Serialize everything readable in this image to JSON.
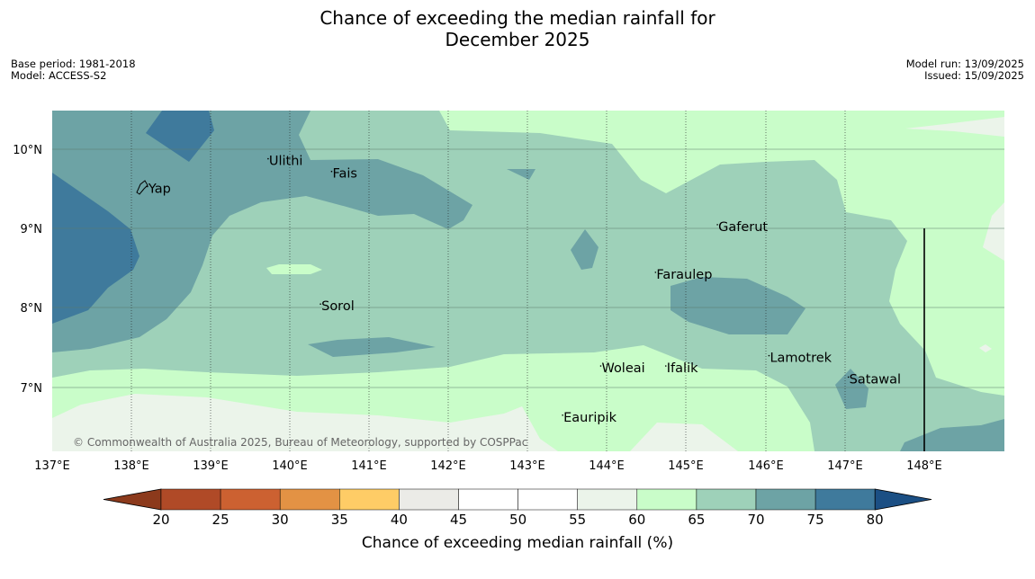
{
  "title_line1": "Chance of exceeding the median rainfall for",
  "title_line2": "December 2025",
  "base_period": "Base period: 1981-2018",
  "model": "Model: ACCESS-S2",
  "model_run": "Model run: 13/09/2025",
  "issued": "Issued: 15/09/2025",
  "copyright": "© Commonwealth of Australia 2025, Bureau of Meteorology, supported by COSPPac",
  "lon_ticks": [
    "137°E",
    "138°E",
    "139°E",
    "140°E",
    "141°E",
    "142°E",
    "143°E",
    "144°E",
    "145°E",
    "146°E",
    "147°E",
    "148°E"
  ],
  "lat_ticks": [
    "10°N",
    "9°N",
    "8°N",
    "7°N"
  ],
  "places": [
    {
      "name": "Yap",
      "lon": 138.2,
      "lat": 9.53
    },
    {
      "name": "Ulithi",
      "lon": 139.72,
      "lat": 9.88
    },
    {
      "name": "Fais",
      "lon": 140.52,
      "lat": 9.72
    },
    {
      "name": "Gaferut",
      "lon": 145.38,
      "lat": 9.05
    },
    {
      "name": "Faraulep",
      "lon": 144.6,
      "lat": 8.45
    },
    {
      "name": "Sorol",
      "lon": 140.38,
      "lat": 8.05
    },
    {
      "name": "Lamotrek",
      "lon": 146.03,
      "lat": 7.4
    },
    {
      "name": "Woleai",
      "lon": 143.91,
      "lat": 7.27
    },
    {
      "name": "Ifalik",
      "lon": 144.73,
      "lat": 7.27
    },
    {
      "name": "Satawal",
      "lon": 147.03,
      "lat": 7.13
    },
    {
      "name": "Eauripik",
      "lon": 143.43,
      "lat": 6.65
    }
  ],
  "colorbar": {
    "label": "Chance of exceeding median rainfall (%)",
    "ticks": [
      "20",
      "25",
      "30",
      "35",
      "40",
      "45",
      "50",
      "55",
      "60",
      "65",
      "70",
      "75",
      "80"
    ],
    "colors": [
      "#8c3a1c",
      "#b04a27",
      "#cc6131",
      "#e39244",
      "#fecc66",
      "#ebebe7",
      "#ffffff",
      "#ffffff",
      "#ebf4ea",
      "#c9fdc9",
      "#9ed1b9",
      "#6da3a5",
      "#3f7a9c",
      "#1b4f84"
    ]
  }
}
